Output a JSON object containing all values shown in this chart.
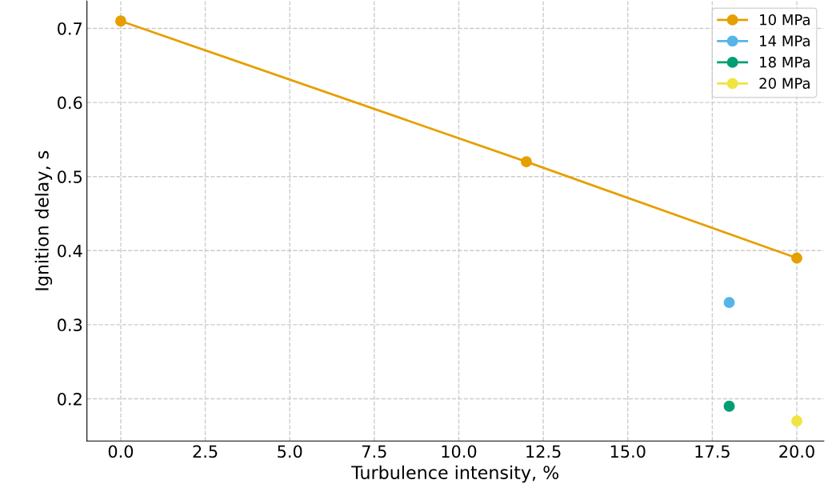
{
  "chart_data": {
    "type": "line",
    "xlabel": "Turbulence intensity, %",
    "ylabel": "Ignition delay, s",
    "series": [
      {
        "name": "10 MPa",
        "color": "#e69f00",
        "x": [
          0,
          12,
          20
        ],
        "values": [
          0.71,
          0.52,
          0.39
        ]
      },
      {
        "name": "14 MPa",
        "color": "#56b4e9",
        "x": [
          18
        ],
        "values": [
          0.33
        ]
      },
      {
        "name": "18 MPa",
        "color": "#009e73",
        "x": [
          18
        ],
        "values": [
          0.19
        ]
      },
      {
        "name": "20 MPa",
        "color": "#f0e442",
        "x": [
          20
        ],
        "values": [
          0.17
        ]
      }
    ],
    "xlim": [
      -1,
      20.8
    ],
    "xticks": [
      {
        "value": 0,
        "label": "0.0"
      },
      {
        "value": 2.5,
        "label": "2.5"
      },
      {
        "value": 5,
        "label": "5.0"
      },
      {
        "value": 7.5,
        "label": "7.5"
      },
      {
        "value": 10,
        "label": "10.0"
      },
      {
        "value": 12.5,
        "label": "12.5"
      },
      {
        "value": 15,
        "label": "15.0"
      },
      {
        "value": 17.5,
        "label": "17.5"
      },
      {
        "value": 20,
        "label": "20.0"
      }
    ],
    "ylim": [
      0.143,
      0.737
    ],
    "yticks": [
      0.2,
      0.3,
      0.4,
      0.5,
      0.6,
      0.7
    ],
    "grid": true,
    "legend": "top right",
    "marker": "circle",
    "line_style": "solid"
  }
}
